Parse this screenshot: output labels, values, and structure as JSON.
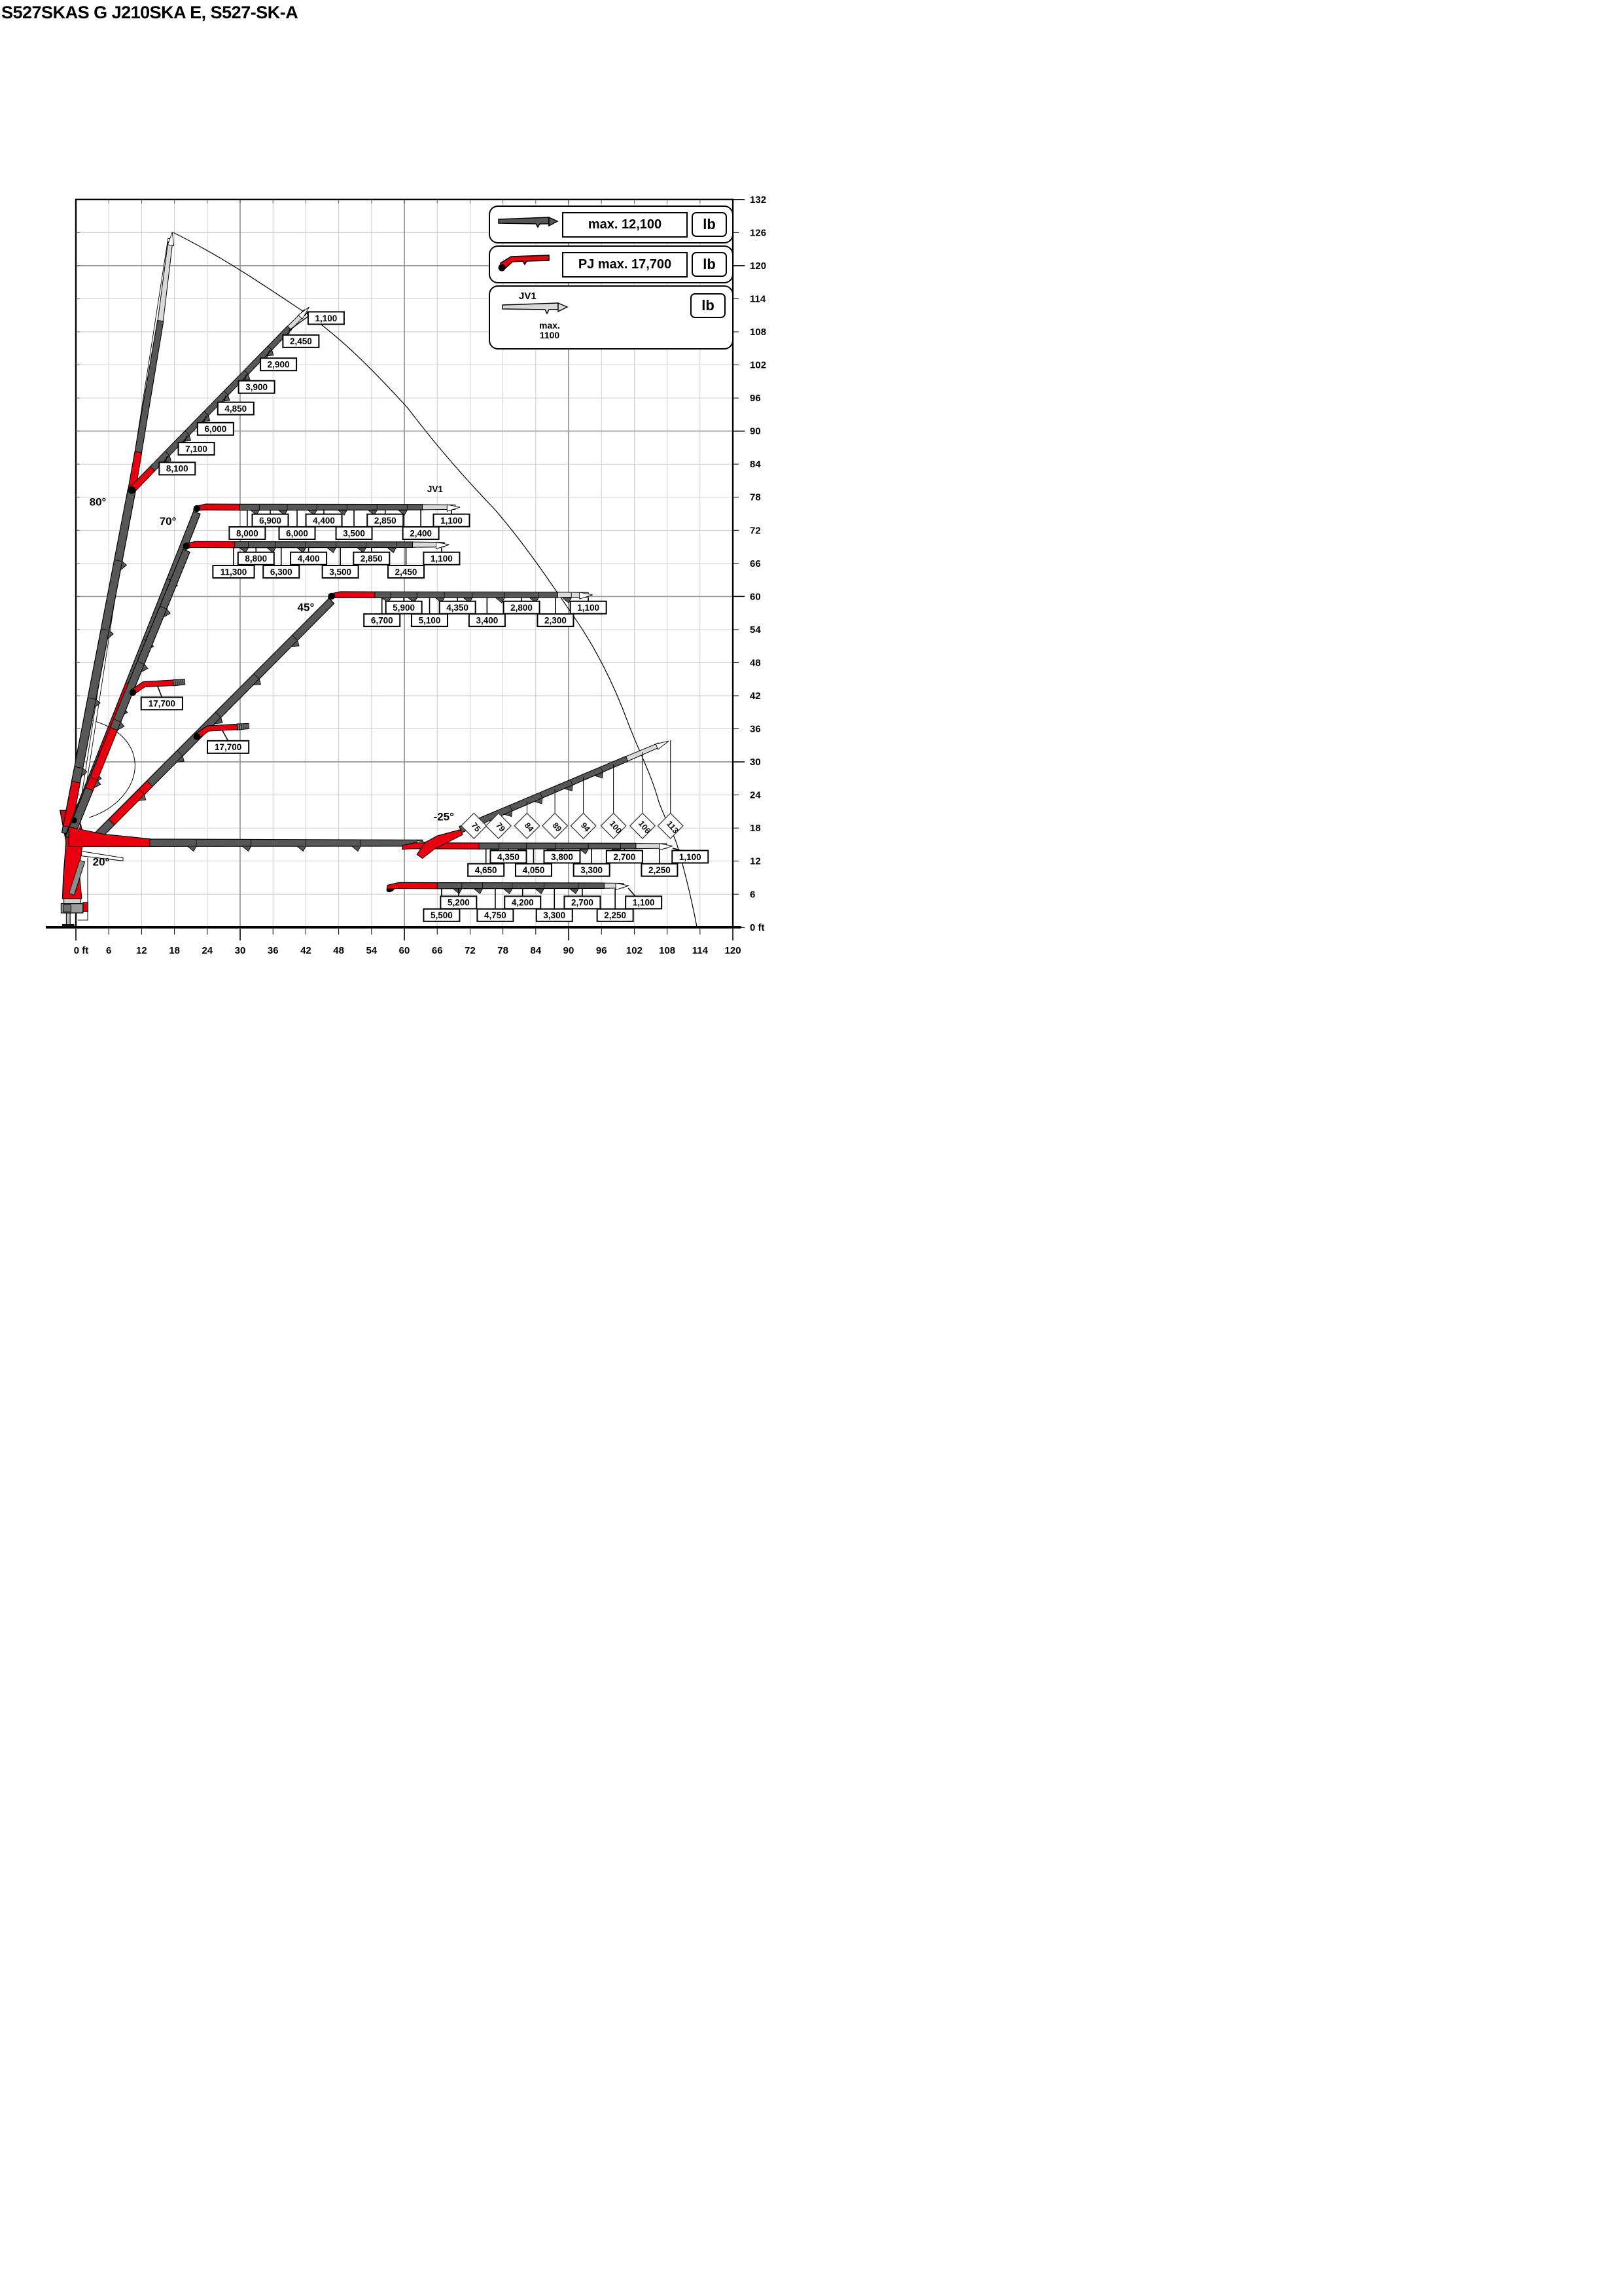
{
  "title": "S527SKAS G J210SKA E, S527-SK-A",
  "legend": {
    "row1": {
      "label": "max. 12,100",
      "unit": "lb"
    },
    "row2": {
      "label": "PJ max. 17,700",
      "unit": "lb"
    },
    "row3": {
      "jib_name": "JV1",
      "max_line1": "max.",
      "max_line2": "1100",
      "unit": "lb"
    }
  },
  "chart_data": {
    "type": "crane-load-diagram",
    "units": {
      "load": "lb",
      "distance": "ft"
    },
    "x_axis": {
      "max": 120,
      "step": 6,
      "ticks": [
        "0 ft",
        "6",
        "12",
        "18",
        "24",
        "30",
        "36",
        "42",
        "48",
        "54",
        "60",
        "66",
        "72",
        "78",
        "84",
        "90",
        "96",
        "102",
        "108",
        "114",
        "120"
      ]
    },
    "y_axis": {
      "max": 132,
      "step": 6,
      "ticks": [
        "132",
        "126",
        "120",
        "114",
        "108",
        "102",
        "96",
        "90",
        "84",
        "78",
        "72",
        "66",
        "60",
        "54",
        "48",
        "42",
        "36",
        "30",
        "24",
        "18",
        "12",
        "6",
        "0 ft"
      ]
    },
    "max_capacity_label": "max. 12,100",
    "pj_max_capacity_label": "PJ max. 17,700",
    "jv1_max_label": "max. 1100",
    "envelope": [
      [
        17.8,
        126.0
      ],
      [
        42,
        111.4
      ],
      [
        60.6,
        94.2
      ],
      [
        76.5,
        75.8
      ],
      [
        91.2,
        56.0
      ],
      [
        100.7,
        37.5
      ],
      [
        106.4,
        23.0
      ],
      [
        109.8,
        15.0
      ],
      [
        113.4,
        0.2
      ]
    ],
    "configs": [
      {
        "id": "boom-80-inline",
        "angle_label": "80°",
        "angle_label_pos": [
          4.0,
          76.5
        ],
        "main": {
          "from": [
            -1.8,
            17
          ],
          "to": [
            10.2,
            79.3
          ],
          "red_t": [
            0.02,
            0.15
          ],
          "joints_y": [
            29,
            41.5,
            54,
            66.5
          ]
        },
        "knuckle": [
          10.2,
          79.3
        ],
        "inline_jib": {
          "red_to": [
            11.4,
            86.2
          ],
          "gray_to": [
            15.45,
            110
          ],
          "light_to": [
            17.25,
            124.3
          ],
          "tip": [
            17.6,
            126.1
          ]
        },
        "outline_boom": {
          "from": [
            0.25,
            17
          ],
          "to": [
            17.05,
            124.9
          ]
        }
      },
      {
        "id": "boom-80-pj-tilted",
        "attach": [
          10.2,
          79.3
        ],
        "red_to": [
          14.0,
          83.2
        ],
        "gray_to": [
          39.0,
          108.7
        ],
        "light_to": [
          42.0,
          111.75
        ],
        "tip": [
          42.6,
          112.5
        ],
        "joints_x": [
          16.7,
          20.3,
          23.8,
          27.4,
          31.1,
          35.4
        ],
        "labels": [
          {
            "t": "8,100",
            "c": [
              18.5,
              83.2
            ]
          },
          {
            "t": "7,100",
            "c": [
              22.0,
              86.8
            ]
          },
          {
            "t": "6,000",
            "c": [
              25.5,
              90.4
            ]
          },
          {
            "t": "4,850",
            "c": [
              29.2,
              94.1
            ]
          },
          {
            "t": "3,900",
            "c": [
              33.0,
              98.0
            ]
          },
          {
            "t": "2,900",
            "c": [
              37.0,
              102.1
            ]
          },
          {
            "t": "2,450",
            "c": [
              41.1,
              106.3
            ]
          },
          {
            "t": "1,100",
            "c": [
              45.7,
              110.5
            ]
          }
        ]
      },
      {
        "id": "boom-70-pj-horizontal",
        "angle_label": "70°",
        "angle_label_pos": [
          16.8,
          73.0
        ],
        "main": {
          "from": [
            -1.2,
            16.5
          ],
          "to": [
            22.1,
            75.2
          ],
          "red_t": [
            0.25,
            0.47
          ],
          "joints_y": [
            28,
            40,
            52,
            63
          ]
        },
        "jib": {
          "y": 76.2,
          "x0": 22.1,
          "dot": true,
          "red_to": 29.9,
          "gray_to": 63.3,
          "light_to": 69.3,
          "tip": 70.2,
          "joints": [
            33.5,
            38.6,
            44.0,
            49.5,
            55.0,
            60.5
          ]
        },
        "jv1_label": "JV1",
        "jv1_pos": [
          65.6,
          78.9
        ],
        "rows": {
          "U": 73.8,
          "L": 71.5
        },
        "callouts": [
          [
            31.3,
            "L",
            "8,000"
          ],
          [
            35.5,
            "U",
            "6,900"
          ],
          [
            40.4,
            "L",
            "6,000"
          ],
          [
            45.3,
            "U",
            "4,400"
          ],
          [
            50.8,
            "L",
            "3,500"
          ],
          [
            56.5,
            "U",
            "2,850"
          ],
          [
            63.0,
            "L",
            "2,400"
          ],
          [
            68.6,
            "U",
            "1,100"
          ]
        ]
      },
      {
        "id": "boom-65-pj-horizontal",
        "main": {
          "from": [
            -1.2,
            16.2
          ],
          "to": [
            20.2,
            68.3
          ],
          "red_t": [
            0.17,
            0.38
          ],
          "joints_y": [
            27,
            37.5,
            48,
            58
          ]
        },
        "jib": {
          "y": 69.4,
          "x0": 20.2,
          "dot": true,
          "red_to": 29.0,
          "gray_to": 61.5,
          "light_to": 67.3,
          "tip": 68.2,
          "joints": [
            31.5,
            36.5,
            42.0,
            47.5,
            53.0,
            58.5
          ]
        },
        "rows": {
          "U": 66.9,
          "L": 64.5
        },
        "callouts": [
          [
            28.8,
            "L",
            "11,300"
          ],
          [
            32.9,
            "U",
            "8,800"
          ],
          [
            37.5,
            "L",
            "6,300"
          ],
          [
            42.5,
            "U",
            "4,400"
          ],
          [
            48.3,
            "L",
            "3,500"
          ],
          [
            54.0,
            "U",
            "2,850"
          ],
          [
            60.3,
            "L",
            "2,450"
          ],
          [
            66.8,
            "U",
            "1,100"
          ]
        ]
      },
      {
        "id": "boom-45-pj-horizontal",
        "angle_label": "45°",
        "angle_label_pos": [
          42.0,
          57.4
        ],
        "main": {
          "from": [
            3.0,
            15.6
          ],
          "to": [
            46.7,
            59.2
          ],
          "red_t": [
            0.08,
            0.24
          ],
          "joints_x": [
            12,
            19,
            26,
            33,
            40
          ]
        },
        "jib": {
          "y": 60.3,
          "x0": 46.7,
          "dot": true,
          "red_to": 54.6,
          "gray_to": 88.0,
          "light_to": 93.6,
          "tip": 94.4,
          "joints": [
            57.5,
            62.3,
            67.3,
            72.4,
            78.3,
            84.5,
            90.5
          ]
        },
        "rows": {
          "U": 58.0,
          "L": 55.7
        },
        "callouts": [
          [
            55.9,
            "L",
            "6,700"
          ],
          [
            59.9,
            "U",
            "5,900"
          ],
          [
            64.6,
            "L",
            "5,100"
          ],
          [
            69.7,
            "U",
            "4,350"
          ],
          [
            75.1,
            "L",
            "3,400"
          ],
          [
            81.4,
            "U",
            "2,800"
          ],
          [
            87.6,
            "L",
            "2,300"
          ],
          [
            93.6,
            "U",
            "1,100"
          ]
        ]
      },
      {
        "id": "boom-20-horizontal",
        "angle_label": "20°",
        "angle_label_pos": [
          4.6,
          11.2
        ],
        "main_band": {
          "y1": 14.65,
          "y2": 16.0,
          "red_to": 13.5,
          "end": 63.3,
          "joints": [
            22,
            32,
            42,
            52
          ]
        },
        "white_stub": [
          [
            1,
            13.8
          ],
          [
            8.6,
            12.6
          ],
          [
            8.6,
            12.05
          ],
          [
            1,
            12.95
          ]
        ],
        "jib": {
          "y": 14.75,
          "x0": 60.2,
          "dot": false,
          "red_to": 73.6,
          "gray_to": 102.3,
          "light_to": 107.9,
          "tip": 109.0,
          "joints": [
            77.3,
            82.3,
            87.6,
            93.6,
            99.5
          ]
        },
        "rows": {
          "U": 12.8,
          "L": 10.4
        },
        "callouts": [
          [
            74.9,
            "L",
            "4,650"
          ],
          [
            79.0,
            "U",
            "4,350"
          ],
          [
            83.6,
            "L",
            "4,050"
          ],
          [
            88.8,
            "U",
            "3,800"
          ],
          [
            94.2,
            "L",
            "3,300"
          ],
          [
            100.2,
            "U",
            "2,700"
          ],
          [
            106.6,
            "L",
            "2,250"
          ]
        ],
        "tip_callout": {
          "t": "1,100",
          "c": [
            112.2,
            12.8
          ],
          "from": [
            109.0,
            14.35
          ]
        }
      },
      {
        "id": "boom-low-horizontal",
        "oval": [
          57.5,
          7.0
        ],
        "jib": {
          "y": 7.55,
          "x0": 57.4,
          "dot": false,
          "red_to": 66.0,
          "gray_to": 96.5,
          "light_to": 100.0,
          "tip": 101.0,
          "joints": [
            70.5,
            74.3,
            79.7,
            85.5,
            91.8
          ]
        },
        "rows": {
          "U": 4.5,
          "L": 2.2
        },
        "callouts": [
          [
            66.8,
            "L",
            "5,500"
          ],
          [
            69.9,
            "U",
            "5,200"
          ],
          [
            76.6,
            "L",
            "4,750"
          ],
          [
            81.6,
            "U",
            "4,200"
          ],
          [
            87.4,
            "L",
            "3,300"
          ],
          [
            92.5,
            "U",
            "2,700"
          ],
          [
            98.5,
            "L",
            "2,250"
          ]
        ],
        "tip_callout": {
          "t": "1,100",
          "c": [
            103.7,
            4.5
          ],
          "from": [
            100.9,
            7.1
          ]
        }
      },
      {
        "id": "boom-neg25",
        "angle_label": "-25°",
        "angle_label_pos": [
          67.2,
          19.4
        ],
        "line": {
          "from": [
            63.8,
            15.0
          ],
          "to": [
            108.3,
            33.8
          ],
          "red_t": 7,
          "gray_t": 40,
          "light_t": 46.5,
          "tip_t": 48.3,
          "joints_t": [
            11,
            17,
            23,
            29,
            35
          ]
        },
        "diamonds": {
          "y": 18.4,
          "rotation": 50,
          "items": [
            {
              "t": "75",
              "x": 72.7
            },
            {
              "t": "79",
              "x": 77.2
            },
            {
              "t": "84",
              "x": 82.4
            },
            {
              "t": "89",
              "x": 87.5
            },
            {
              "t": "94",
              "x": 92.7
            },
            {
              "t": "100",
              "x": 98.2
            },
            {
              "t": "106",
              "x": 103.5
            },
            {
              "t": "113",
              "x": 108.6
            }
          ]
        }
      },
      {
        "id": "pj-max-upper",
        "label": "17,700",
        "dot": [
          10.4,
          42.6
        ],
        "red": [
          [
            10.1,
            43.1
          ],
          [
            12.3,
            44.55
          ],
          [
            17.8,
            44.85
          ],
          [
            17.8,
            43.85
          ],
          [
            12.6,
            43.6
          ],
          [
            10.4,
            42.1
          ]
        ],
        "stub": {
          "from": [
            17.8,
            44.35
          ],
          "to": [
            19.9,
            44.5
          ]
        },
        "callout_from": [
          14.9,
          43.8
        ],
        "label_c": [
          15.7,
          40.6
        ]
      },
      {
        "id": "pj-max-lower",
        "label": "17,700",
        "dot": [
          22.1,
          34.6
        ],
        "red": [
          [
            21.8,
            35.1
          ],
          [
            24.0,
            36.55
          ],
          [
            29.5,
            36.85
          ],
          [
            29.5,
            35.85
          ],
          [
            24.3,
            35.6
          ],
          [
            22.1,
            34.1
          ]
        ],
        "stub": {
          "from": [
            29.5,
            36.35
          ],
          "to": [
            31.6,
            36.5
          ]
        },
        "callout_from": [
          26.7,
          35.8
        ],
        "label_c": [
          27.8,
          32.7
        ]
      }
    ],
    "colors": {
      "red": "#e80010",
      "boom": "#575757",
      "light": "#d9d9d9",
      "stub": "#777777",
      "grid_minor": "#c9c9c9",
      "grid_major": "#9a9a9a",
      "frame": "#000000"
    }
  }
}
